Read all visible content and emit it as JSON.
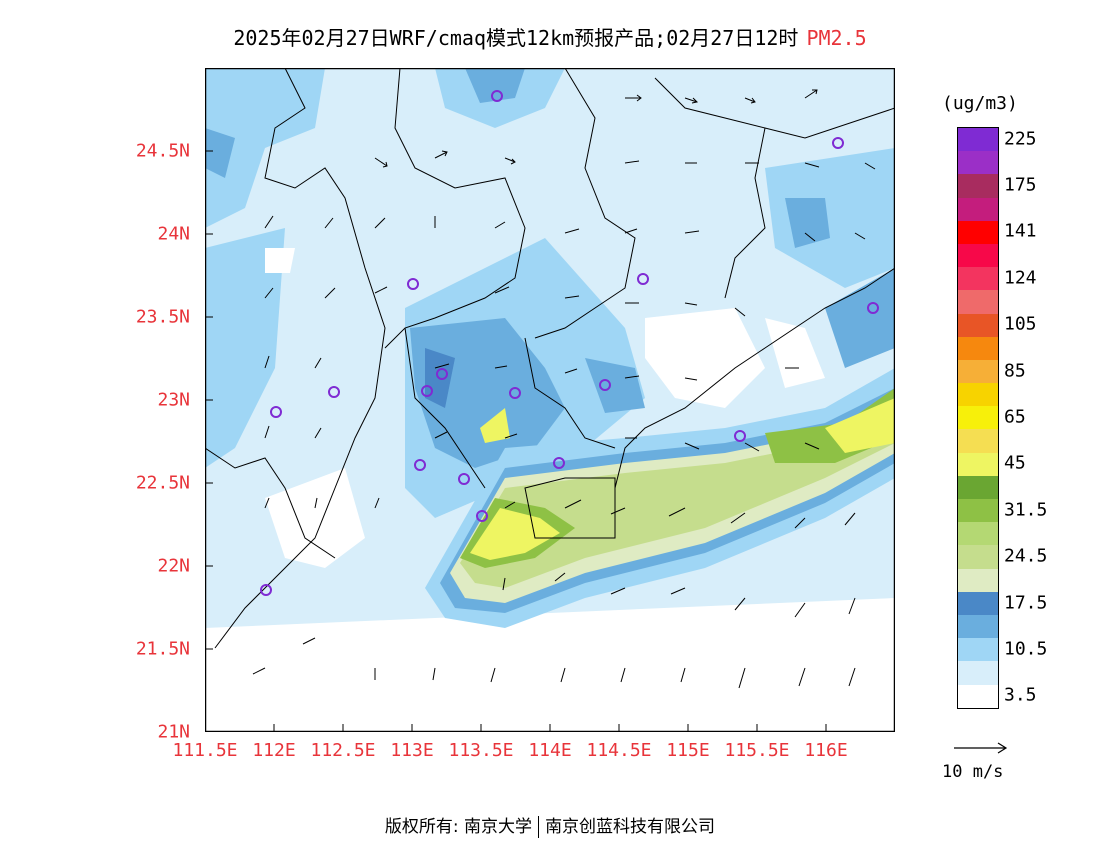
{
  "title": {
    "main": "2025年02月27日WRF/cmaq模式12km预报产品;02月27日12时",
    "pollutant": "PM2.5"
  },
  "axes": {
    "lat_labels": [
      "24.5N",
      "24N",
      "23.5N",
      "23N",
      "22.5N",
      "22N",
      "21.5N",
      "21N"
    ],
    "lon_labels": [
      "111.5E",
      "112E",
      "112.5E",
      "113E",
      "113.5E",
      "114E",
      "114.5E",
      "115E",
      "115.5E",
      "116E"
    ]
  },
  "legend": {
    "unit": "(ug/m3)",
    "colors": [
      "#ffffff",
      "#d8eefa",
      "#9fd6f5",
      "#6aaede",
      "#4a88c7",
      "#dfebc3",
      "#c5dd8d",
      "#b4d873",
      "#8ec145",
      "#6aa632",
      "#eef562",
      "#f5de52",
      "#f7f00a",
      "#f7d300",
      "#f6af37",
      "#f6880e",
      "#e85526",
      "#ef6a6a",
      "#f3345f",
      "#f70849",
      "#ff0000",
      "#c41d7d",
      "#a82c5f",
      "#9b2fc7",
      "#7f2bd3"
    ],
    "labels": [
      "3.5",
      "10.5",
      "17.5",
      "24.5",
      "31.5",
      "45",
      "65",
      "85",
      "105",
      "124",
      "141",
      "175",
      "225"
    ]
  },
  "reference_vector": {
    "label": "10 m/s"
  },
  "copyright": {
    "left": "版权所有: 南京大学",
    "right": "南京创蓝科技有限公司"
  }
}
